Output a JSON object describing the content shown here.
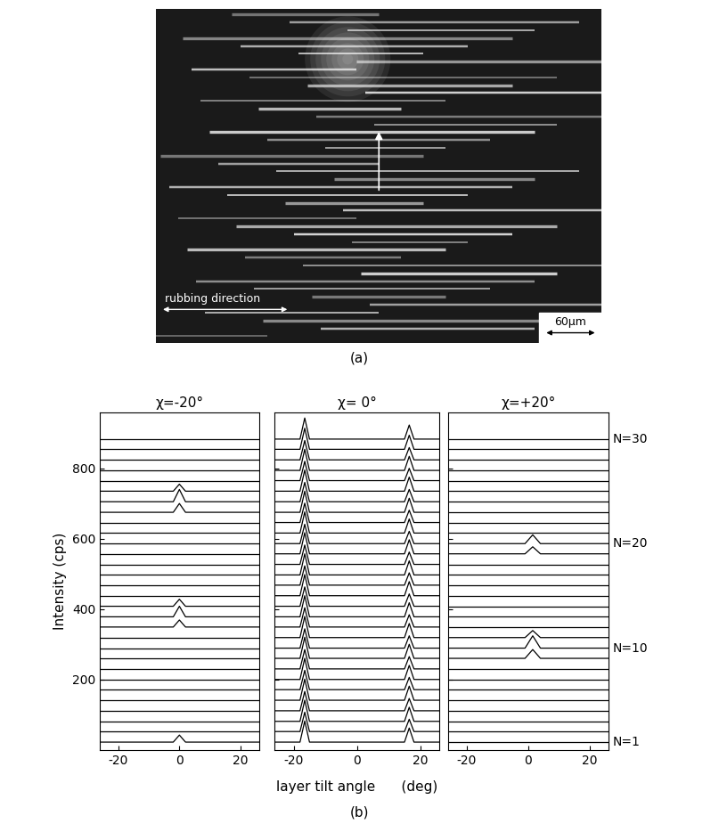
{
  "micrograph": {
    "panel_label": "(a)",
    "rubbing_label": "rubbing direction",
    "scale_label": "60μm"
  },
  "panel_label": "(b)",
  "x_label": "layer tilt angle      (deg)",
  "trace_labels": {
    "values": [
      30,
      20,
      10,
      1
    ],
    "labels": [
      "N=30",
      "N=20",
      "N=10",
      "N=1"
    ]
  },
  "chart_data": [
    {
      "type": "line",
      "title": "χ=-20°",
      "y_label": "Intensity (cps)",
      "color": "#000000",
      "xlim": [
        -26,
        26
      ],
      "xticks": [
        -20,
        0,
        20
      ],
      "ylim": [
        0,
        960
      ],
      "yticks": [
        200,
        400,
        600,
        800
      ],
      "x": [
        -26,
        -2,
        0,
        2,
        26
      ],
      "series": [
        {
          "values": [
            22,
            22,
            42,
            22,
            22
          ]
        },
        {
          "values": [
            52,
            52,
            52,
            52,
            52
          ]
        },
        {
          "values": [
            81,
            81,
            81,
            81,
            81
          ]
        },
        {
          "values": [
            111,
            111,
            111,
            111,
            111
          ]
        },
        {
          "values": [
            141,
            141,
            141,
            141,
            141
          ]
        },
        {
          "values": [
            171,
            171,
            171,
            171,
            171
          ]
        },
        {
          "values": [
            200,
            200,
            200,
            200,
            200
          ]
        },
        {
          "values": [
            230,
            230,
            230,
            230,
            230
          ]
        },
        {
          "values": [
            260,
            260,
            260,
            260,
            260
          ]
        },
        {
          "values": [
            289,
            289,
            289,
            289,
            289
          ]
        },
        {
          "values": [
            319,
            319,
            319,
            319,
            319
          ]
        },
        {
          "values": [
            349,
            349,
            369,
            349,
            349
          ]
        },
        {
          "values": [
            378,
            378,
            408,
            378,
            378
          ]
        },
        {
          "values": [
            408,
            408,
            428,
            408,
            408
          ]
        },
        {
          "values": [
            438,
            438,
            438,
            438,
            438
          ]
        },
        {
          "values": [
            468,
            468,
            468,
            468,
            468
          ]
        },
        {
          "values": [
            497,
            497,
            497,
            497,
            497
          ]
        },
        {
          "values": [
            527,
            527,
            527,
            527,
            527
          ]
        },
        {
          "values": [
            557,
            557,
            557,
            557,
            557
          ]
        },
        {
          "values": [
            586,
            586,
            586,
            586,
            586
          ]
        },
        {
          "values": [
            616,
            616,
            616,
            616,
            616
          ]
        },
        {
          "values": [
            646,
            646,
            646,
            646,
            646
          ]
        },
        {
          "values": [
            675,
            675,
            700,
            675,
            675
          ]
        },
        {
          "values": [
            705,
            705,
            740,
            705,
            705
          ]
        },
        {
          "values": [
            735,
            735,
            755,
            735,
            735
          ]
        },
        {
          "values": [
            765,
            765,
            765,
            765,
            765
          ]
        },
        {
          "values": [
            794,
            794,
            794,
            794,
            794
          ]
        },
        {
          "values": [
            824,
            824,
            824,
            824,
            824
          ]
        },
        {
          "values": [
            854,
            854,
            854,
            854,
            854
          ]
        },
        {
          "values": [
            883,
            883,
            883,
            883,
            883
          ]
        }
      ]
    },
    {
      "type": "line",
      "title": "χ= 0°",
      "color": "#000000",
      "tick_labels": "x",
      "xlim": [
        -26,
        26
      ],
      "xticks": [
        -20,
        0,
        20
      ],
      "ylim": [
        0,
        960
      ],
      "yticks": [
        200,
        400,
        600,
        800
      ],
      "x": [
        -26,
        -18,
        -16.5,
        -15,
        15,
        16.5,
        18,
        26
      ],
      "series": [
        {
          "values": [
            22,
            22,
            82,
            22,
            22,
            62,
            22,
            22
          ]
        },
        {
          "values": [
            52,
            52,
            107,
            52,
            52,
            87,
            52,
            52
          ]
        },
        {
          "values": [
            81,
            81,
            141,
            81,
            81,
            121,
            81,
            81
          ]
        },
        {
          "values": [
            111,
            111,
            166,
            111,
            111,
            146,
            111,
            111
          ]
        },
        {
          "values": [
            141,
            141,
            201,
            141,
            141,
            181,
            141,
            141
          ]
        },
        {
          "values": [
            171,
            171,
            226,
            171,
            171,
            206,
            171,
            171
          ]
        },
        {
          "values": [
            200,
            200,
            260,
            200,
            200,
            240,
            200,
            200
          ]
        },
        {
          "values": [
            230,
            230,
            285,
            230,
            230,
            265,
            230,
            230
          ]
        },
        {
          "values": [
            260,
            260,
            320,
            260,
            260,
            300,
            260,
            260
          ]
        },
        {
          "values": [
            289,
            289,
            344,
            289,
            289,
            324,
            289,
            289
          ]
        },
        {
          "values": [
            319,
            319,
            379,
            319,
            319,
            359,
            319,
            319
          ]
        },
        {
          "values": [
            349,
            349,
            404,
            349,
            349,
            384,
            349,
            349
          ]
        },
        {
          "values": [
            378,
            378,
            438,
            378,
            378,
            418,
            378,
            378
          ]
        },
        {
          "values": [
            408,
            408,
            463,
            408,
            408,
            443,
            408,
            408
          ]
        },
        {
          "values": [
            438,
            438,
            498,
            438,
            438,
            478,
            438,
            438
          ]
        },
        {
          "values": [
            468,
            468,
            523,
            468,
            468,
            503,
            468,
            468
          ]
        },
        {
          "values": [
            497,
            497,
            557,
            497,
            497,
            537,
            497,
            497
          ]
        },
        {
          "values": [
            527,
            527,
            582,
            527,
            527,
            562,
            527,
            527
          ]
        },
        {
          "values": [
            557,
            557,
            617,
            557,
            557,
            597,
            557,
            557
          ]
        },
        {
          "values": [
            586,
            586,
            641,
            586,
            586,
            621,
            586,
            586
          ]
        },
        {
          "values": [
            616,
            616,
            676,
            616,
            616,
            656,
            616,
            616
          ]
        },
        {
          "values": [
            646,
            646,
            701,
            646,
            646,
            681,
            646,
            646
          ]
        },
        {
          "values": [
            675,
            675,
            735,
            675,
            675,
            715,
            675,
            675
          ]
        },
        {
          "values": [
            705,
            705,
            760,
            705,
            705,
            740,
            705,
            705
          ]
        },
        {
          "values": [
            735,
            735,
            795,
            735,
            735,
            775,
            735,
            735
          ]
        },
        {
          "values": [
            765,
            765,
            820,
            765,
            765,
            800,
            765,
            765
          ]
        },
        {
          "values": [
            794,
            794,
            854,
            794,
            794,
            834,
            794,
            794
          ]
        },
        {
          "values": [
            824,
            824,
            879,
            824,
            824,
            859,
            824,
            824
          ]
        },
        {
          "values": [
            854,
            854,
            914,
            854,
            854,
            894,
            854,
            854
          ]
        },
        {
          "values": [
            883,
            883,
            943,
            883,
            883,
            923,
            883,
            883
          ]
        }
      ]
    },
    {
      "type": "line",
      "title": "χ=+20°",
      "color": "#000000",
      "tick_labels": "x",
      "xlim": [
        -26,
        26
      ],
      "xticks": [
        -20,
        0,
        20
      ],
      "ylim": [
        0,
        960
      ],
      "yticks": [
        200,
        400,
        600,
        800
      ],
      "x": [
        -26,
        -1,
        1.5,
        4,
        26
      ],
      "series": [
        {
          "values": [
            22,
            22,
            22,
            22,
            22
          ]
        },
        {
          "values": [
            52,
            52,
            52,
            52,
            52
          ]
        },
        {
          "values": [
            81,
            81,
            81,
            81,
            81
          ]
        },
        {
          "values": [
            111,
            111,
            111,
            111,
            111
          ]
        },
        {
          "values": [
            141,
            141,
            141,
            141,
            141
          ]
        },
        {
          "values": [
            171,
            171,
            171,
            171,
            171
          ]
        },
        {
          "values": [
            200,
            200,
            200,
            200,
            200
          ]
        },
        {
          "values": [
            230,
            230,
            230,
            230,
            230
          ]
        },
        {
          "values": [
            260,
            260,
            285,
            260,
            260
          ]
        },
        {
          "values": [
            289,
            289,
            324,
            289,
            289
          ]
        },
        {
          "values": [
            319,
            319,
            339,
            319,
            319
          ]
        },
        {
          "values": [
            349,
            349,
            349,
            349,
            349
          ]
        },
        {
          "values": [
            378,
            378,
            378,
            378,
            378
          ]
        },
        {
          "values": [
            408,
            408,
            408,
            408,
            408
          ]
        },
        {
          "values": [
            438,
            438,
            438,
            438,
            438
          ]
        },
        {
          "values": [
            468,
            468,
            468,
            468,
            468
          ]
        },
        {
          "values": [
            497,
            497,
            497,
            497,
            497
          ]
        },
        {
          "values": [
            527,
            527,
            527,
            527,
            527
          ]
        },
        {
          "values": [
            557,
            557,
            577,
            557,
            557
          ]
        },
        {
          "values": [
            586,
            586,
            611,
            586,
            586
          ]
        },
        {
          "values": [
            616,
            616,
            616,
            616,
            616
          ]
        },
        {
          "values": [
            646,
            646,
            646,
            646,
            646
          ]
        },
        {
          "values": [
            675,
            675,
            675,
            675,
            675
          ]
        },
        {
          "values": [
            705,
            705,
            705,
            705,
            705
          ]
        },
        {
          "values": [
            735,
            735,
            735,
            735,
            735
          ]
        },
        {
          "values": [
            765,
            765,
            765,
            765,
            765
          ]
        },
        {
          "values": [
            794,
            794,
            794,
            794,
            794
          ]
        },
        {
          "values": [
            824,
            824,
            824,
            824,
            824
          ]
        },
        {
          "values": [
            854,
            854,
            854,
            854,
            854
          ]
        },
        {
          "values": [
            883,
            883,
            883,
            883,
            883
          ]
        }
      ]
    }
  ]
}
